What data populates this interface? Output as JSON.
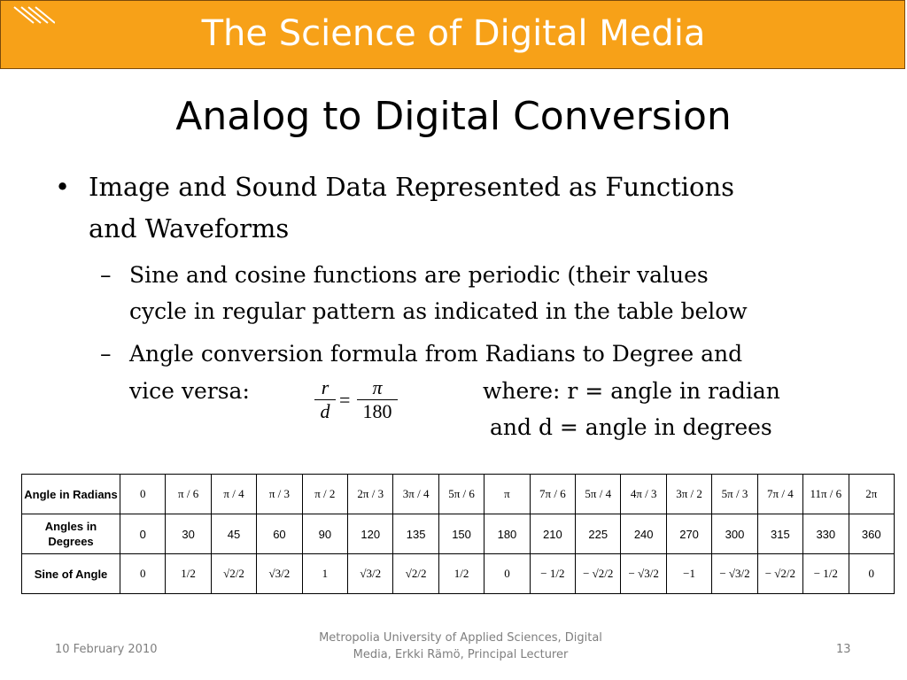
{
  "header": {
    "title": "The Science of Digital Media",
    "icon": "stripes-icon",
    "color": "#f7a118"
  },
  "slide": {
    "title": "Analog to Digital Conversion",
    "bullet": {
      "line1": "Image and Sound Data Represented as Functions",
      "line2": "and Waveforms"
    },
    "sub1": {
      "line1": "Sine and cosine functions are periodic (their values",
      "line2": "cycle in regular pattern as indicated in the table below"
    },
    "sub2": {
      "line1": "Angle conversion formula from Radians to Degree and",
      "line2": "vice versa:",
      "where1": "where: r = angle in radian",
      "where2": "and d = angle in degrees"
    },
    "formula": {
      "r": "r",
      "d": "d",
      "eq": "=",
      "pi": "π",
      "n180": "180"
    }
  },
  "table": {
    "row_headers": {
      "radians": "Angle in Radians",
      "degrees": "Angles in Degrees",
      "sine": "Sine of Angle"
    },
    "radians": [
      "0",
      "π / 6",
      "π / 4",
      "π / 3",
      "π / 2",
      "2π / 3",
      "3π / 4",
      "5π / 6",
      "π",
      "7π / 6",
      "5π / 4",
      "4π / 3",
      "3π / 2",
      "5π / 3",
      "7π / 4",
      "11π / 6",
      "2π"
    ],
    "degrees": [
      "0",
      "30",
      "45",
      "60",
      "90",
      "120",
      "135",
      "150",
      "180",
      "210",
      "225",
      "240",
      "270",
      "300",
      "315",
      "330",
      "360"
    ],
    "sine": [
      "0",
      "1/2",
      "√2/2",
      "√3/2",
      "1",
      "√3/2",
      "√2/2",
      "1/2",
      "0",
      "− 1/2",
      "− √2/2",
      "− √3/2",
      "−1",
      "− √3/2",
      "− √2/2",
      "− 1/2",
      "0"
    ]
  },
  "footer": {
    "date": "10 February 2010",
    "credit_line1": "Metropolia University of Applied Sciences,  Digital",
    "credit_line2": "Media, Erkki Rämö, Principal Lecturer",
    "page": "13"
  }
}
